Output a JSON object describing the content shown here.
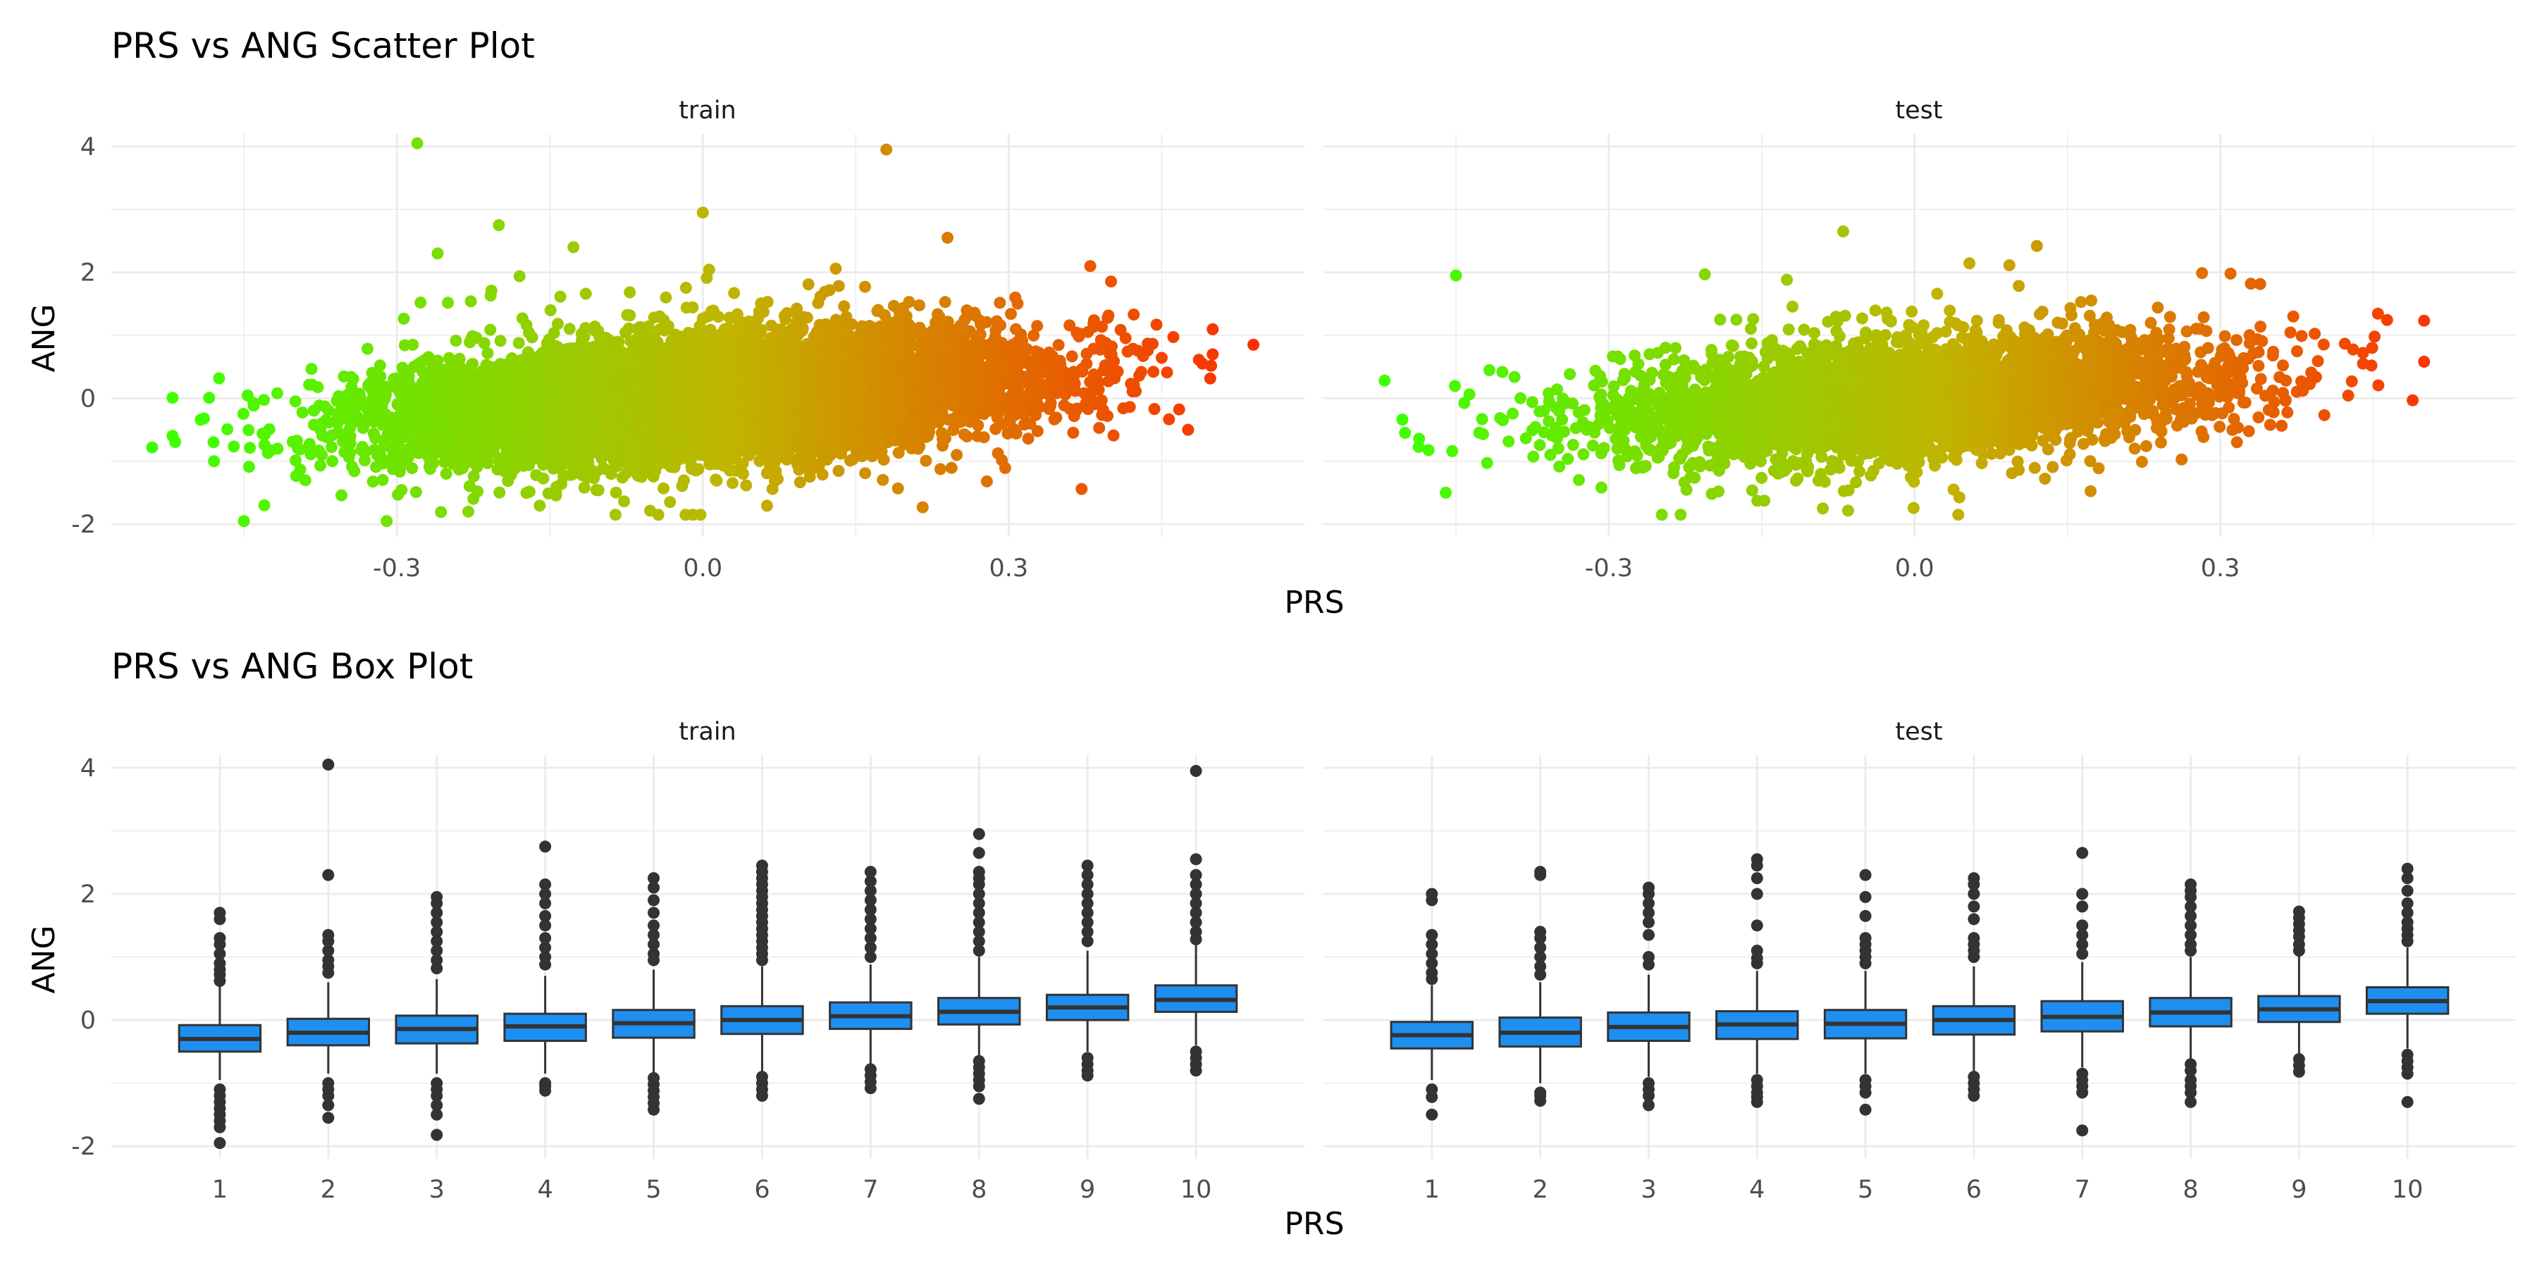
{
  "figure": {
    "panel_labels": {
      "train": "train",
      "test": "test"
    }
  },
  "chart_data": [
    {
      "type": "scatter",
      "title": "PRS vs ANG Scatter Plot",
      "xlabel": "PRS",
      "ylabel": "ANG",
      "facets": [
        "train",
        "test"
      ],
      "xlim": [
        -0.58,
        0.59
      ],
      "ylim": [
        -2.2,
        4.2
      ],
      "x_ticks": [
        -0.3,
        0.0,
        0.3
      ],
      "x_tick_labels": [
        "-0.3",
        "0.0",
        "0.3"
      ],
      "y_ticks": [
        -2,
        0,
        2,
        4
      ],
      "y_tick_labels": [
        "-2",
        "0",
        "2",
        "4"
      ],
      "grid": true,
      "color_scale": {
        "variable": "PRS",
        "low": "#40ff00",
        "mid": "#c0b500",
        "high": "#ff2a00",
        "domain": [
          -0.5,
          0.55
        ]
      },
      "trend": {
        "slope": 1.05,
        "intercept": 0.0,
        "spread_sd": 0.45
      },
      "point_counts": {
        "train": 9000,
        "test": 4000
      },
      "x_sd": 0.15,
      "notable_points": {
        "train": [
          {
            "x": -0.28,
            "y": 4.05
          },
          {
            "x": 0.18,
            "y": 3.95
          },
          {
            "x": 0.54,
            "y": 0.85
          },
          {
            "x": -0.54,
            "y": -0.78
          },
          {
            "x": -0.45,
            "y": -1.95
          },
          {
            "x": -0.31,
            "y": -1.95
          },
          {
            "x": -0.23,
            "y": -1.8
          },
          {
            "x": -0.2,
            "y": 2.75
          },
          {
            "x": 0.0,
            "y": 2.95
          },
          {
            "x": 0.24,
            "y": 2.55
          },
          {
            "x": -0.26,
            "y": 2.3
          },
          {
            "x": 0.49,
            "y": 0.55
          },
          {
            "x": 0.38,
            "y": 2.1
          },
          {
            "x": -0.43,
            "y": -1.7
          }
        ],
        "test": [
          {
            "x": -0.07,
            "y": 2.65
          },
          {
            "x": 0.5,
            "y": 0.58
          },
          {
            "x": -0.5,
            "y": -0.55
          },
          {
            "x": -0.46,
            "y": -1.5
          },
          {
            "x": -0.09,
            "y": -1.75
          },
          {
            "x": 0.31,
            "y": 1.98
          },
          {
            "x": 0.44,
            "y": 0.72
          },
          {
            "x": -0.45,
            "y": 1.95
          },
          {
            "x": 0.12,
            "y": 2.42
          },
          {
            "x": 0.33,
            "y": 1.82
          },
          {
            "x": 0.44,
            "y": 0.55
          }
        ]
      }
    },
    {
      "type": "box",
      "title": "PRS vs ANG Box Plot",
      "xlabel": "PRS",
      "ylabel": "ANG",
      "facets": [
        "train",
        "test"
      ],
      "categories": [
        "1",
        "2",
        "3",
        "4",
        "5",
        "6",
        "7",
        "8",
        "9",
        "10"
      ],
      "ylim": [
        -2.2,
        4.2
      ],
      "y_ticks": [
        -2,
        0,
        2,
        4
      ],
      "y_tick_labels": [
        "-2",
        "0",
        "2",
        "4"
      ],
      "grid": true,
      "box_color": "#1e8ff0",
      "series": {
        "train": [
          {
            "q1": -0.5,
            "median": -0.3,
            "q3": -0.08,
            "low": -0.95,
            "high": 0.55,
            "outliers": [
              1.7,
              1.6,
              1.3,
              1.2,
              1.05,
              0.9,
              0.8,
              0.72,
              0.62,
              -1.1,
              -1.2,
              -1.3,
              -1.4,
              -1.5,
              -1.6,
              -1.7,
              -1.95
            ]
          },
          {
            "q1": -0.4,
            "median": -0.2,
            "q3": 0.02,
            "low": -0.85,
            "high": 0.6,
            "outliers": [
              4.05,
              2.3,
              1.35,
              1.25,
              1.1,
              0.95,
              0.85,
              0.75,
              -1.0,
              -1.1,
              -1.2,
              -1.35,
              -1.55
            ]
          },
          {
            "q1": -0.37,
            "median": -0.14,
            "q3": 0.07,
            "low": -0.85,
            "high": 0.65,
            "outliers": [
              1.95,
              1.85,
              1.7,
              1.55,
              1.4,
              1.25,
              1.1,
              0.95,
              0.82,
              -1.0,
              -1.1,
              -1.2,
              -1.35,
              -1.5,
              -1.82
            ]
          },
          {
            "q1": -0.33,
            "median": -0.1,
            "q3": 0.1,
            "low": -0.85,
            "high": 0.7,
            "outliers": [
              2.75,
              2.15,
              2.0,
              1.85,
              1.65,
              1.5,
              1.3,
              1.15,
              1.0,
              0.88,
              -1.0,
              -1.05,
              -1.12
            ]
          },
          {
            "q1": -0.28,
            "median": -0.05,
            "q3": 0.16,
            "low": -0.85,
            "high": 0.8,
            "outliers": [
              2.25,
              2.1,
              1.9,
              1.7,
              1.5,
              1.35,
              1.2,
              1.05,
              0.95,
              -0.92,
              -1.02,
              -1.12,
              -1.22,
              -1.32,
              -1.42
            ]
          },
          {
            "q1": -0.22,
            "median": 0.0,
            "q3": 0.22,
            "low": -0.85,
            "high": 0.85,
            "outliers": [
              2.45,
              2.35,
              2.25,
              2.15,
              2.05,
              1.95,
              1.85,
              1.75,
              1.65,
              1.55,
              1.45,
              1.35,
              1.25,
              1.15,
              1.05,
              0.95,
              -0.9,
              -1.0,
              -1.1,
              -1.2
            ]
          },
          {
            "q1": -0.14,
            "median": 0.06,
            "q3": 0.28,
            "low": -0.7,
            "high": 0.88,
            "outliers": [
              2.35,
              2.2,
              2.05,
              1.9,
              1.75,
              1.6,
              1.45,
              1.3,
              1.15,
              1.0,
              -0.78,
              -0.88,
              -0.98,
              -1.08
            ]
          },
          {
            "q1": -0.07,
            "median": 0.13,
            "q3": 0.35,
            "low": -0.6,
            "high": 1.0,
            "outliers": [
              2.95,
              2.65,
              2.35,
              2.25,
              2.15,
              2.0,
              1.85,
              1.7,
              1.55,
              1.4,
              1.25,
              1.1,
              -0.65,
              -0.75,
              -0.85,
              -0.95,
              -1.05,
              -1.25
            ]
          },
          {
            "q1": 0.0,
            "median": 0.2,
            "q3": 0.4,
            "low": -0.5,
            "high": 1.1,
            "outliers": [
              2.45,
              2.3,
              2.15,
              2.0,
              1.85,
              1.7,
              1.55,
              1.4,
              1.25,
              -0.6,
              -0.7,
              -0.8,
              -0.88
            ]
          },
          {
            "q1": 0.13,
            "median": 0.32,
            "q3": 0.55,
            "low": -0.4,
            "high": 1.2,
            "outliers": [
              3.95,
              2.55,
              2.3,
              2.15,
              2.0,
              1.85,
              1.7,
              1.55,
              1.4,
              1.28,
              -0.5,
              -0.6,
              -0.7,
              -0.8
            ]
          }
        ],
        "test": [
          {
            "q1": -0.45,
            "median": -0.24,
            "q3": -0.03,
            "low": -0.95,
            "high": 0.55,
            "outliers": [
              2.0,
              1.9,
              1.35,
              1.2,
              1.05,
              0.9,
              0.75,
              0.65,
              -1.1,
              -1.22,
              -1.5
            ]
          },
          {
            "q1": -0.42,
            "median": -0.2,
            "q3": 0.04,
            "low": -1.0,
            "high": 0.6,
            "outliers": [
              2.35,
              2.3,
              1.4,
              1.3,
              1.15,
              1.0,
              0.85,
              0.72,
              -1.15,
              -1.2,
              -1.28
            ]
          },
          {
            "q1": -0.33,
            "median": -0.11,
            "q3": 0.12,
            "low": -0.9,
            "high": 0.72,
            "outliers": [
              2.1,
              2.0,
              1.85,
              1.7,
              1.55,
              1.35,
              1.0,
              0.88,
              -1.0,
              -1.1,
              -1.2,
              -1.35
            ]
          },
          {
            "q1": -0.3,
            "median": -0.07,
            "q3": 0.14,
            "low": -0.85,
            "high": 0.78,
            "outliers": [
              2.55,
              2.45,
              2.25,
              2.0,
              1.5,
              1.1,
              0.98,
              0.9,
              -0.95,
              -1.05,
              -1.15,
              -1.22,
              -1.3
            ]
          },
          {
            "q1": -0.29,
            "median": -0.06,
            "q3": 0.16,
            "low": -0.85,
            "high": 0.78,
            "outliers": [
              2.3,
              1.95,
              1.65,
              1.3,
              1.2,
              1.1,
              1.0,
              0.9,
              -0.95,
              -1.05,
              -1.15,
              -1.42
            ]
          },
          {
            "q1": -0.23,
            "median": 0.0,
            "q3": 0.22,
            "low": -0.82,
            "high": 0.85,
            "outliers": [
              2.25,
              2.15,
              2.0,
              1.8,
              1.6,
              1.3,
              1.2,
              1.1,
              1.0,
              -0.9,
              -1.0,
              -1.1,
              -1.2
            ]
          },
          {
            "q1": -0.18,
            "median": 0.05,
            "q3": 0.3,
            "low": -0.75,
            "high": 0.92,
            "outliers": [
              2.65,
              2.0,
              1.8,
              1.5,
              1.35,
              1.2,
              1.05,
              -0.85,
              -0.95,
              -1.05,
              -1.15,
              -1.75
            ]
          },
          {
            "q1": -0.1,
            "median": 0.12,
            "q3": 0.35,
            "low": -0.65,
            "high": 1.0,
            "outliers": [
              2.15,
              2.05,
              1.95,
              1.8,
              1.65,
              1.5,
              1.35,
              1.2,
              1.1,
              -0.7,
              -0.8,
              -0.95,
              -1.05,
              -1.15,
              -1.3
            ]
          },
          {
            "q1": -0.03,
            "median": 0.17,
            "q3": 0.38,
            "low": -0.55,
            "high": 1.02,
            "outliers": [
              1.72,
              1.62,
              1.52,
              1.42,
              1.32,
              1.2,
              1.1,
              -0.62,
              -0.72,
              -0.82
            ]
          },
          {
            "q1": 0.1,
            "median": 0.3,
            "q3": 0.52,
            "low": -0.45,
            "high": 1.15,
            "outliers": [
              2.4,
              2.25,
              2.05,
              1.85,
              1.7,
              1.55,
              1.45,
              1.35,
              1.25,
              -0.55,
              -0.65,
              -0.75,
              -0.85,
              -1.3
            ]
          }
        ]
      }
    }
  ]
}
